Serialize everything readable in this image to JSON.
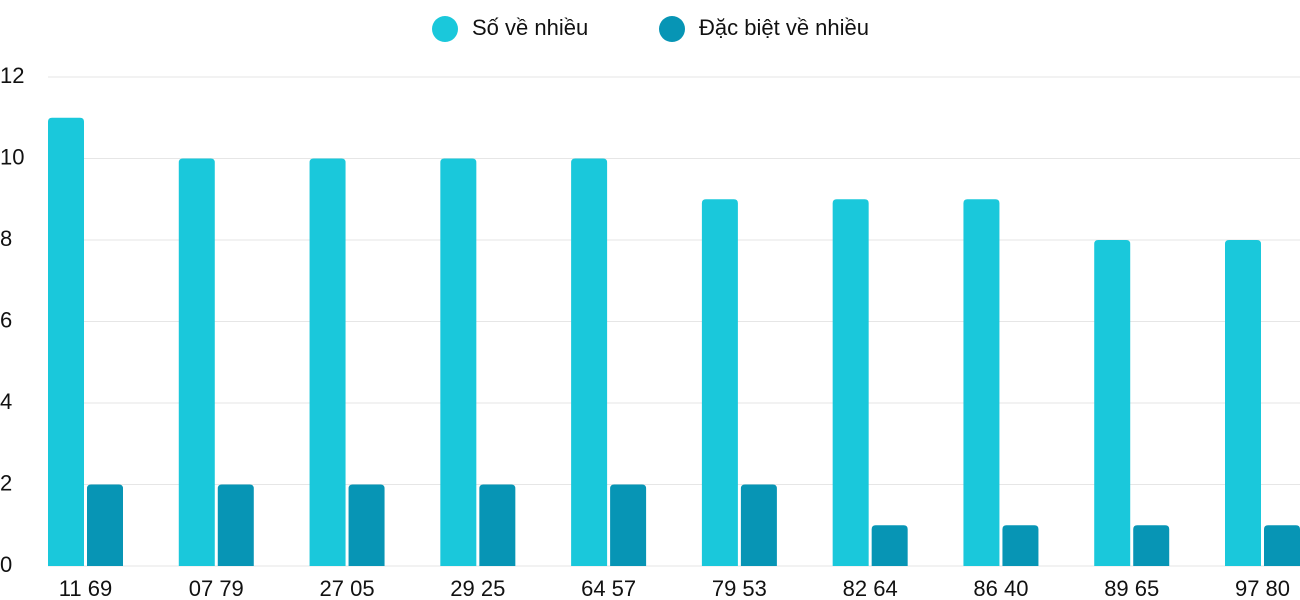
{
  "chart_data": {
    "type": "bar",
    "categories": [
      "11 69",
      "07 79",
      "27 05",
      "29 25",
      "64 57",
      "79 53",
      "82 64",
      "86 40",
      "89 65",
      "97 80"
    ],
    "series": [
      {
        "name": "Số về nhiều",
        "color": "#1ac8db",
        "values": [
          11,
          10,
          10,
          10,
          10,
          9,
          9,
          9,
          8,
          8
        ]
      },
      {
        "name": "Đặc biệt về nhiều",
        "color": "#0795b5",
        "values": [
          2,
          2,
          2,
          2,
          2,
          2,
          1,
          1,
          1,
          1
        ]
      }
    ],
    "ylim": [
      0,
      12
    ],
    "yticks": [
      0,
      2,
      4,
      6,
      8,
      10,
      12
    ],
    "grid": true,
    "legend": "top"
  }
}
